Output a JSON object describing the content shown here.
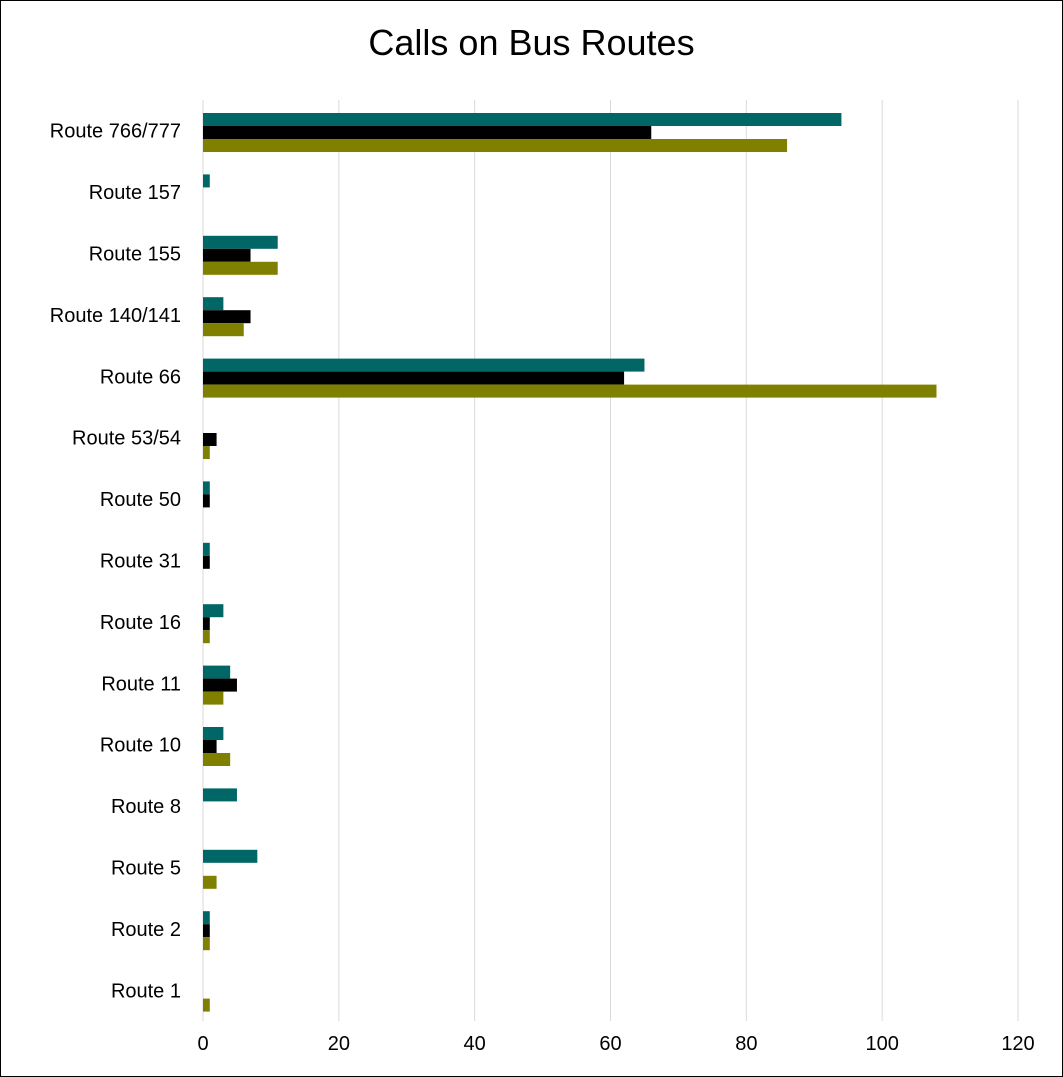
{
  "chart_data": {
    "type": "bar",
    "orientation": "horizontal",
    "title": "Calls on Bus Routes",
    "xlabel": "",
    "ylabel": "",
    "xlim": [
      0,
      120
    ],
    "xticks": [
      "0",
      "20",
      "40",
      "60",
      "80",
      "100",
      "120"
    ],
    "grid": true,
    "legend": "none",
    "categories": [
      "Route 766/777",
      "Route 157",
      "Route 155",
      "Route 140/141",
      "Route 66",
      "Route 53/54",
      "Route 50",
      "Route 31",
      "Route 16",
      "Route 11",
      "Route 10",
      "Route 8",
      "Route 5",
      "Route 2",
      "Route 1"
    ],
    "series": [
      {
        "color": "#006666",
        "values": [
          94,
          1,
          11,
          3,
          65,
          0,
          1,
          1,
          3,
          4,
          3,
          5,
          8,
          1,
          0
        ]
      },
      {
        "color": "#000000",
        "values": [
          66,
          0,
          7,
          7,
          62,
          2,
          1,
          1,
          1,
          5,
          2,
          0,
          0,
          1,
          0
        ]
      },
      {
        "color": "#808000",
        "values": [
          86,
          0,
          11,
          6,
          108,
          1,
          0,
          0,
          1,
          3,
          4,
          0,
          2,
          1,
          1
        ]
      }
    ]
  }
}
